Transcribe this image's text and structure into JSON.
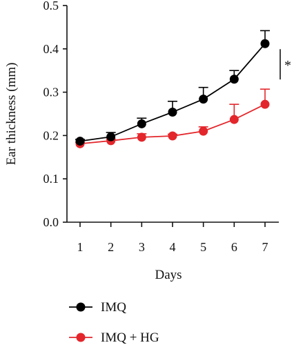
{
  "chart_data": {
    "type": "line",
    "title": "",
    "xlabel": "Days",
    "ylabel": "Ear thickness (mm)",
    "x": [
      1,
      2,
      3,
      4,
      5,
      6,
      7
    ],
    "x_ticks": [
      "1",
      "2",
      "3",
      "4",
      "5",
      "6",
      "7"
    ],
    "ylim": [
      0,
      0.5
    ],
    "y_ticks": [
      "0.0",
      "0.1",
      "0.2",
      "0.3",
      "0.4",
      "0.5"
    ],
    "grid": false,
    "legend_position": "bottom-left",
    "series": [
      {
        "name": "IMQ",
        "color": "#000000",
        "values": [
          0.187,
          0.197,
          0.227,
          0.254,
          0.284,
          0.33,
          0.412
        ],
        "error": [
          0.004,
          0.01,
          0.013,
          0.025,
          0.027,
          0.02,
          0.03
        ]
      },
      {
        "name": "IMQ + HG",
        "color": "#e3262b",
        "values": [
          0.181,
          0.188,
          0.196,
          0.199,
          0.21,
          0.237,
          0.272
        ],
        "error": [
          0.003,
          0.004,
          0.008,
          0.004,
          0.01,
          0.035,
          0.035
        ]
      }
    ],
    "annotations": [
      {
        "text": "*",
        "type": "significance",
        "between": [
          "IMQ",
          "IMQ + HG"
        ],
        "at_x": 7
      }
    ]
  }
}
